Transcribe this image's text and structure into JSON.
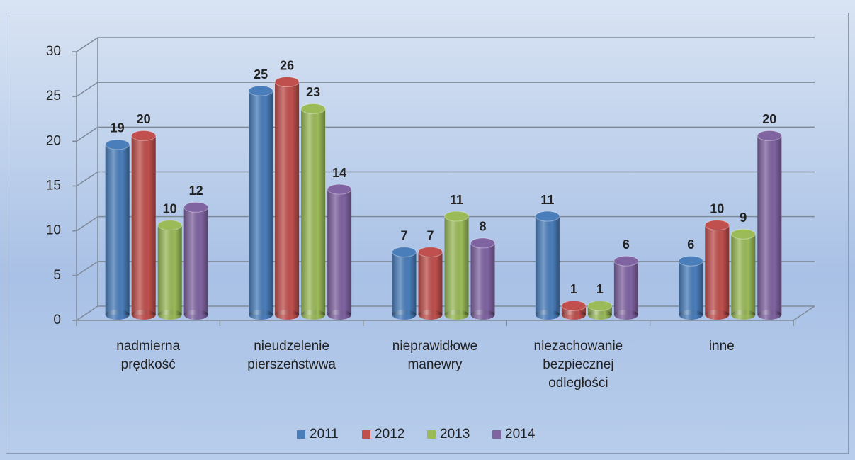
{
  "chart_data": {
    "type": "bar",
    "categories": [
      "nadmierna prędkość",
      "nieudzelenie pierszeństwwa",
      "nieprawidłowe manewry",
      "niezachowanie bezpiecznej odległości",
      "inne"
    ],
    "series": [
      {
        "name": "2011",
        "color": "#4a7ebb",
        "values": [
          19,
          25,
          7,
          11,
          6
        ]
      },
      {
        "name": "2012",
        "color": "#c0504d",
        "values": [
          20,
          26,
          7,
          1,
          10
        ]
      },
      {
        "name": "2013",
        "color": "#9bbb59",
        "values": [
          10,
          23,
          11,
          1,
          9
        ]
      },
      {
        "name": "2014",
        "color": "#8064a2",
        "values": [
          12,
          14,
          8,
          6,
          20
        ]
      }
    ],
    "ylim": [
      0,
      30
    ],
    "yticks": [
      0,
      5,
      10,
      15,
      20,
      25,
      30
    ],
    "grid": true,
    "legend": "bottom"
  }
}
